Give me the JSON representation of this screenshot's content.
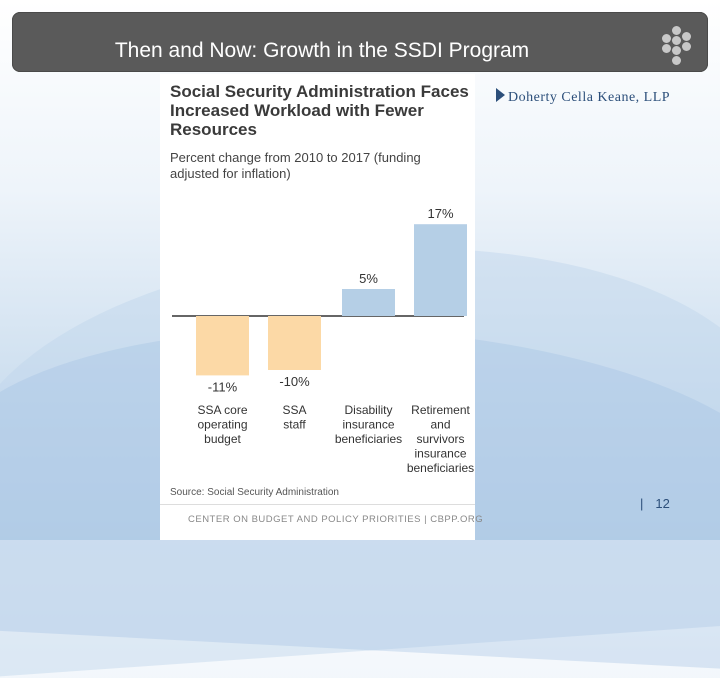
{
  "slide": {
    "title": "Then and Now:  Growth in the SSDI Program",
    "logo_text": "Doherty Cella Keane, LLP",
    "page_separator": "|",
    "page_number": "12"
  },
  "colors": {
    "negative_bar": "#fcd9a6",
    "positive_bar": "#b5cfe6",
    "title_bar": "#5a5a5a"
  },
  "chart_data": {
    "type": "bar",
    "title": "Social Security Administration Faces Increased Workload with Fewer Resources",
    "subtitle": "Percent change from 2010 to 2017 (funding adjusted for inflation)",
    "categories": [
      [
        "SSA core",
        "operating",
        "budget"
      ],
      [
        "SSA",
        "staff"
      ],
      [
        "Disability",
        "insurance",
        "beneficiaries"
      ],
      [
        "Retirement",
        "and",
        "survivors",
        "insurance",
        "beneficiaries"
      ]
    ],
    "values": [
      -11,
      -10,
      5,
      17
    ],
    "value_labels": [
      "-11%",
      "-10%",
      "5%",
      "17%"
    ],
    "ylim": [
      -12,
      18
    ],
    "xlabel": "",
    "ylabel": "",
    "grid": false,
    "source": "Source: Social Security Administration",
    "footer": "CENTER ON BUDGET AND POLICY PRIORITIES | CBPP.ORG"
  }
}
